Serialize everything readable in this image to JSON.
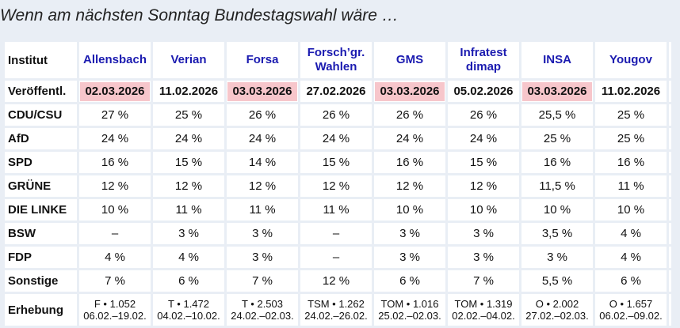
{
  "title": "Wenn am nächsten Sonntag Bundestagswahl wäre …",
  "header_label": "Institut",
  "institutes": [
    {
      "name": "Allensbach",
      "published": "02.03.2026",
      "highlight": true,
      "survey_line1": "F • 1.052",
      "survey_line2": "06.02.–19.02."
    },
    {
      "name": "Verian",
      "published": "11.02.2026",
      "highlight": false,
      "survey_line1": "T • 1.472",
      "survey_line2": "04.02.–10.02."
    },
    {
      "name": "Forsa",
      "published": "03.03.2026",
      "highlight": true,
      "survey_line1": "T • 2.503",
      "survey_line2": "24.02.–02.03."
    },
    {
      "name_line1": "Forsch’gr.",
      "name_line2": "Wahlen",
      "published": "27.02.2026",
      "highlight": false,
      "survey_line1": "TSM • 1.262",
      "survey_line2": "24.02.–26.02."
    },
    {
      "name": "GMS",
      "published": "03.03.2026",
      "highlight": true,
      "survey_line1": "TOM • 1.016",
      "survey_line2": "25.02.–02.03."
    },
    {
      "name_line1": "Infratest",
      "name_line2": "dimap",
      "published": "05.02.2026",
      "highlight": false,
      "survey_line1": "TOM • 1.319",
      "survey_line2": "02.02.–04.02."
    },
    {
      "name": "INSA",
      "published": "03.03.2026",
      "highlight": true,
      "survey_line1": "O • 2.002",
      "survey_line2": "27.02.–02.03."
    },
    {
      "name": "Yougov",
      "published": "11.02.2026",
      "highlight": false,
      "survey_line1": "O • 1.657",
      "survey_line2": "06.02.–09.02."
    }
  ],
  "published_label": "Veröffentl.",
  "parties": [
    {
      "name": "CDU/CSU",
      "values": [
        "27 %",
        "25 %",
        "26 %",
        "26 %",
        "26 %",
        "26 %",
        "25,5 %",
        "25 %"
      ]
    },
    {
      "name": "AfD",
      "values": [
        "24 %",
        "24 %",
        "24 %",
        "24 %",
        "24 %",
        "24 %",
        "25 %",
        "25 %"
      ]
    },
    {
      "name": "SPD",
      "values": [
        "16 %",
        "15 %",
        "14 %",
        "15 %",
        "16 %",
        "15 %",
        "16 %",
        "16 %"
      ]
    },
    {
      "name": "GRÜNE",
      "values": [
        "12 %",
        "12 %",
        "12 %",
        "12 %",
        "12 %",
        "12 %",
        "11,5 %",
        "11 %"
      ]
    },
    {
      "name": "DIE LINKE",
      "values": [
        "10 %",
        "11 %",
        "11 %",
        "11 %",
        "10 %",
        "10 %",
        "10 %",
        "10 %"
      ]
    },
    {
      "name": "BSW",
      "values": [
        "–",
        "3 %",
        "3 %",
        "–",
        "3 %",
        "3 %",
        "3,5 %",
        "4 %"
      ]
    },
    {
      "name": "FDP",
      "values": [
        "4 %",
        "4 %",
        "3 %",
        "–",
        "3 %",
        "3 %",
        "3 %",
        "4 %"
      ]
    },
    {
      "name": "Sonstige",
      "values": [
        "7 %",
        "6 %",
        "7 %",
        "12 %",
        "6 %",
        "7 %",
        "5,5 %",
        "6 %"
      ]
    }
  ],
  "survey_label": "Erhebung",
  "colors": {
    "institute_link": "#1b1bb0",
    "highlight": "#f7c6cb",
    "background": "#e9eef5"
  }
}
